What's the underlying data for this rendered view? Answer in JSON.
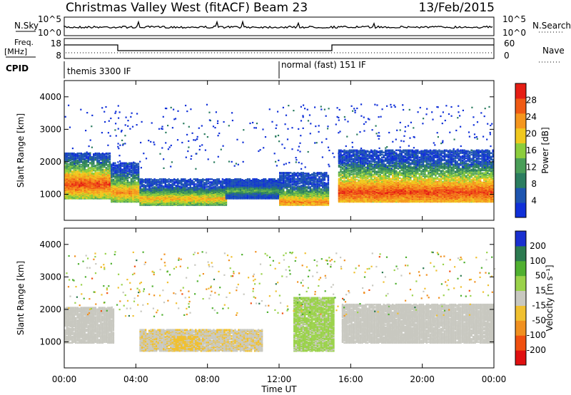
{
  "header": {
    "station": "Christmas Valley West (fitACF)",
    "beam": "Beam 23",
    "date": "13/Feb/2015"
  },
  "summary": {
    "nsky_label": "N.Sky",
    "nsky_ticks": [
      "10^5",
      "10^0"
    ],
    "nsearch_label": "N.Search",
    "nsearch_ticks": [
      "10^5",
      "10^0"
    ],
    "freq_label": "Freq.",
    "freq_unit": "[MHz]",
    "freq_ticks": [
      "18",
      "8"
    ],
    "nave_label": "Nave",
    "nave_ticks": [
      "60",
      "0"
    ],
    "cpid_label": "CPID",
    "cpid_segments": [
      {
        "label": "themis 3300 IF",
        "start_h": 0,
        "end_h": 12
      },
      {
        "label": "normal (fast) 151 IF",
        "start_h": 12,
        "end_h": 24
      }
    ]
  },
  "colors": {
    "power": [
      "#1030d8",
      "#1e55b0",
      "#2b7d60",
      "#4a9e58",
      "#8ccd3c",
      "#f0c81e",
      "#f5961e",
      "#f05a14",
      "#e61e14"
    ],
    "velocity": [
      "#1a30d0",
      "#2c7a50",
      "#50b030",
      "#9ad24a",
      "#c8c8c0",
      "#f0c030",
      "#f09020",
      "#f05010",
      "#e01010"
    ],
    "freq_line": "#000000"
  },
  "chart_data": [
    {
      "type": "heatmap",
      "panel": "power",
      "ylabel": "Slant Range [km]",
      "yticks": [
        "4000",
        "3000",
        "2000",
        "1000"
      ],
      "ylim": [
        200,
        4500
      ],
      "xlim": [
        0,
        24
      ],
      "colorbar_label": "Power [dB]",
      "colorbar_ticks": [
        "28",
        "24",
        "20",
        "16",
        "12",
        "8",
        "4"
      ],
      "colorbar_range": [
        0,
        32
      ],
      "bands": [
        {
          "t0": 0.0,
          "t1": 2.6,
          "r0": 900,
          "r1": 2300,
          "core_r": 1350,
          "peak_db": 28
        },
        {
          "t0": 2.6,
          "t1": 4.2,
          "r0": 800,
          "r1": 2000,
          "core_r": 1100,
          "peak_db": 24
        },
        {
          "t0": 4.2,
          "t1": 9.0,
          "r0": 700,
          "r1": 1500,
          "core_r": 900,
          "peak_db": 22
        },
        {
          "t0": 9.0,
          "t1": 12.0,
          "r0": 900,
          "r1": 1500,
          "core_r": 1150,
          "peak_db": 14
        },
        {
          "t0": 12.0,
          "t1": 14.7,
          "r0": 700,
          "r1": 1700,
          "core_r": 800,
          "peak_db": 24
        },
        {
          "t0": 15.3,
          "t1": 24.0,
          "r0": 800,
          "r1": 2400,
          "core_r": 1100,
          "peak_db": 28
        }
      ]
    },
    {
      "type": "heatmap",
      "panel": "velocity",
      "ylabel": "Slant Range [km]",
      "yticks": [
        "4000",
        "3000",
        "2000",
        "1000"
      ],
      "ylim": [
        200,
        4500
      ],
      "xlim": [
        0,
        24
      ],
      "xticks": [
        "00:00",
        "04:00",
        "08:00",
        "12:00",
        "16:00",
        "20:00",
        "00:00"
      ],
      "xlabel": "Time UT",
      "colorbar_label": "Velocity [m s⁻¹]",
      "colorbar_ticks": [
        "200",
        "100",
        "50",
        "15",
        "-15",
        "-50",
        "-100",
        "-200"
      ],
      "colorbar_range": [
        -250,
        250
      ],
      "bands": [
        {
          "t0": 0.0,
          "t1": 2.8,
          "r0": 1000,
          "r1": 2100,
          "velocity": 0
        },
        {
          "t0": 4.2,
          "t1": 11.0,
          "r0": 750,
          "r1": 1400,
          "velocity": -20
        },
        {
          "t0": 6.0,
          "t1": 7.5,
          "r0": 800,
          "r1": 1200,
          "velocity": -40
        },
        {
          "t0": 12.8,
          "t1": 15.0,
          "r0": 750,
          "r1": 2400,
          "velocity": 40
        },
        {
          "t0": 15.5,
          "t1": 24.0,
          "r0": 1000,
          "r1": 2200,
          "velocity": 0
        }
      ]
    }
  ]
}
